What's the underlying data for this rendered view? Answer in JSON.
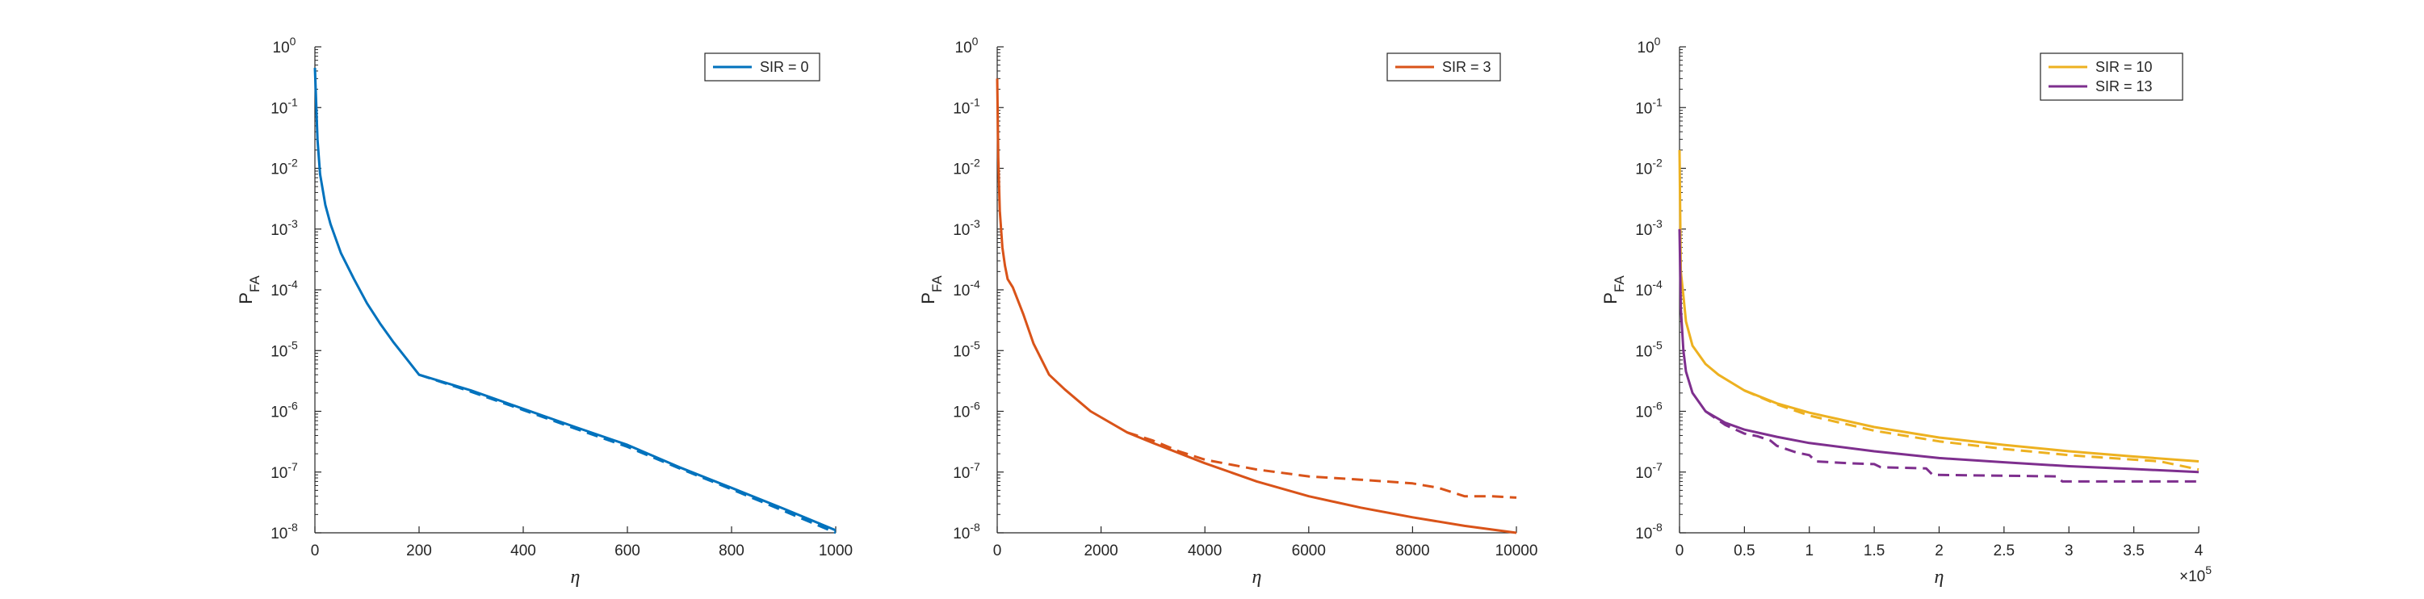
{
  "chart_data": [
    {
      "type": "line",
      "yscale": "log",
      "xlabel": "η",
      "ylabel": "P_FA",
      "ylabel_main": "P",
      "ylabel_sub": "FA",
      "xlim": [
        0,
        1000
      ],
      "ylim": [
        1e-08,
        1
      ],
      "xticks": [
        0,
        200,
        400,
        600,
        800,
        1000
      ],
      "xtick_labels": [
        "0",
        "200",
        "400",
        "600",
        "800",
        "1000"
      ],
      "ytick_labels": [
        {
          "base": "10",
          "exp": "-8"
        },
        {
          "base": "10",
          "exp": "-7"
        },
        {
          "base": "10",
          "exp": "-6"
        },
        {
          "base": "10",
          "exp": "-5"
        },
        {
          "base": "10",
          "exp": "-4"
        },
        {
          "base": "10",
          "exp": "-3"
        },
        {
          "base": "10",
          "exp": "-2"
        },
        {
          "base": "10",
          "exp": "-1"
        },
        {
          "base": "10",
          "exp": "0"
        }
      ],
      "x_exponent": null,
      "legend": {
        "position": "top-right",
        "entries": [
          {
            "label": "SIR = 0",
            "color": "#0072BD"
          }
        ]
      },
      "series": [
        {
          "name": "SIR = 0",
          "style": "solid",
          "color": "#0072BD",
          "x": [
            0,
            5,
            10,
            20,
            30,
            50,
            75,
            100,
            125,
            150,
            175,
            200,
            300,
            400,
            500,
            600,
            700,
            800,
            900,
            1000
          ],
          "y": [
            0.45,
            0.03,
            0.008,
            0.0025,
            0.0012,
            0.0004,
            0.00015,
            6e-05,
            2.8e-05,
            1.4e-05,
            7.5e-06,
            4e-06,
            2.2e-06,
            1.1e-06,
            5.5e-07,
            2.8e-07,
            1.2e-07,
            5.5e-08,
            2.5e-08,
            1.1e-08
          ]
        },
        {
          "style": "dashed",
          "color": "#0072BD",
          "x": [
            200,
            300,
            400,
            500,
            600,
            700,
            800,
            900,
            1000
          ],
          "y": [
            4e-06,
            2.1e-06,
            1.05e-06,
            5.2e-07,
            2.6e-07,
            1.15e-07,
            5.2e-08,
            2.3e-08,
            1e-08
          ]
        }
      ]
    },
    {
      "type": "line",
      "yscale": "log",
      "xlabel": "η",
      "ylabel": "P_FA",
      "ylabel_main": "P",
      "ylabel_sub": "FA",
      "xlim": [
        0,
        10000
      ],
      "ylim": [
        1e-08,
        1
      ],
      "xticks": [
        0,
        2000,
        4000,
        6000,
        8000,
        10000
      ],
      "xtick_labels": [
        "0",
        "2000",
        "4000",
        "6000",
        "8000",
        "10000"
      ],
      "ytick_labels": [
        {
          "base": "10",
          "exp": "-8"
        },
        {
          "base": "10",
          "exp": "-7"
        },
        {
          "base": "10",
          "exp": "-6"
        },
        {
          "base": "10",
          "exp": "-5"
        },
        {
          "base": "10",
          "exp": "-4"
        },
        {
          "base": "10",
          "exp": "-3"
        },
        {
          "base": "10",
          "exp": "-2"
        },
        {
          "base": "10",
          "exp": "-1"
        },
        {
          "base": "10",
          "exp": "0"
        }
      ],
      "x_exponent": null,
      "legend": {
        "position": "top-right",
        "entries": [
          {
            "label": "SIR = 3",
            "color": "#D95319"
          }
        ]
      },
      "series": [
        {
          "name": "SIR = 3",
          "style": "solid",
          "color": "#D95319",
          "x": [
            0,
            20,
            50,
            100,
            150,
            200,
            300,
            500,
            700,
            1000,
            1300,
            1800,
            2500,
            3000,
            4000,
            5000,
            6000,
            7000,
            8000,
            9000,
            10000
          ],
          "y": [
            0.3,
            0.015,
            0.002,
            0.0005,
            0.00025,
            0.00015,
            0.00011,
            4e-05,
            1.3e-05,
            4e-06,
            2.3e-06,
            1e-06,
            4.5e-07,
            3e-07,
            1.4e-07,
            7e-08,
            4e-08,
            2.6e-08,
            1.8e-08,
            1.3e-08,
            1e-08
          ]
        },
        {
          "style": "dashed",
          "color": "#D95319",
          "x": [
            2500,
            3000,
            3500,
            4000,
            5000,
            6000,
            7000,
            8000,
            8500,
            9000,
            9500,
            10000
          ],
          "y": [
            4.5e-07,
            3.3e-07,
            2.2e-07,
            1.6e-07,
            1.1e-07,
            8.5e-08,
            7.5e-08,
            6.5e-08,
            5.5e-08,
            4e-08,
            4e-08,
            3.8e-08
          ]
        }
      ]
    },
    {
      "type": "line",
      "yscale": "log",
      "xlabel": "η",
      "ylabel": "P_FA",
      "ylabel_main": "P",
      "ylabel_sub": "FA",
      "xlim": [
        0,
        4
      ],
      "ylim": [
        1e-08,
        1
      ],
      "xticks": [
        0,
        0.5,
        1,
        1.5,
        2,
        2.5,
        3,
        3.5,
        4
      ],
      "xtick_labels": [
        "0",
        "0.5",
        "1",
        "1.5",
        "2",
        "2.5",
        "3",
        "3.5",
        "4"
      ],
      "ytick_labels": [
        {
          "base": "10",
          "exp": "-8"
        },
        {
          "base": "10",
          "exp": "-7"
        },
        {
          "base": "10",
          "exp": "-6"
        },
        {
          "base": "10",
          "exp": "-5"
        },
        {
          "base": "10",
          "exp": "-4"
        },
        {
          "base": "10",
          "exp": "-3"
        },
        {
          "base": "10",
          "exp": "-2"
        },
        {
          "base": "10",
          "exp": "-1"
        },
        {
          "base": "10",
          "exp": "0"
        }
      ],
      "x_exponent": {
        "prefix": "×10",
        "exp": "5"
      },
      "legend": {
        "position": "top-right",
        "entries": [
          {
            "label": "SIR = 10",
            "color": "#EDB120"
          },
          {
            "label": "SIR = 13",
            "color": "#7E2F8E"
          }
        ]
      },
      "series": [
        {
          "name": "SIR = 10",
          "style": "solid",
          "color": "#EDB120",
          "x": [
            0,
            0.01,
            0.03,
            0.05,
            0.1,
            0.2,
            0.3,
            0.5,
            0.75,
            1,
            1.5,
            2,
            2.5,
            3,
            3.5,
            4
          ],
          "y": [
            0.02,
            0.0002,
            8e-05,
            3e-05,
            1.2e-05,
            6e-06,
            4e-06,
            2.2e-06,
            1.35e-06,
            9.5e-07,
            5.5e-07,
            3.7e-07,
            2.8e-07,
            2.2e-07,
            1.8e-07,
            1.5e-07
          ]
        },
        {
          "style": "dashed",
          "color": "#EDB120",
          "x": [
            0.5,
            0.75,
            1,
            1.5,
            2,
            2.5,
            3,
            3.5,
            3.7,
            4
          ],
          "y": [
            2.2e-06,
            1.3e-06,
            8.5e-07,
            4.8e-07,
            3.2e-07,
            2.4e-07,
            1.9e-07,
            1.6e-07,
            1.5e-07,
            1.1e-07
          ]
        },
        {
          "name": "SIR = 13",
          "style": "solid",
          "color": "#7E2F8E",
          "x": [
            0,
            0.01,
            0.03,
            0.05,
            0.1,
            0.2,
            0.35,
            0.5,
            0.75,
            1,
            1.5,
            2,
            2.5,
            3,
            3.5,
            4
          ],
          "y": [
            0.001,
            5e-05,
            1e-05,
            4.5e-06,
            2e-06,
            1e-06,
            6.5e-07,
            5e-07,
            3.8e-07,
            3e-07,
            2.2e-07,
            1.7e-07,
            1.45e-07,
            1.25e-07,
            1.12e-07,
            1e-07
          ]
        },
        {
          "style": "dashed",
          "color": "#7E2F8E",
          "x": [
            0.2,
            0.35,
            0.5,
            0.6,
            0.7,
            0.75,
            0.9,
            1,
            1.05,
            1.3,
            1.5,
            1.55,
            1.9,
            1.95,
            2.5,
            2.9,
            2.95,
            3.5,
            4
          ],
          "y": [
            1e-06,
            6e-07,
            4.3e-07,
            3.9e-07,
            3.3e-07,
            2.7e-07,
            2.1e-07,
            1.9e-07,
            1.5e-07,
            1.4e-07,
            1.35e-07,
            1.2e-07,
            1.15e-07,
            9e-08,
            8.7e-08,
            8.5e-08,
            7e-08,
            7e-08,
            7e-08
          ]
        }
      ]
    }
  ]
}
